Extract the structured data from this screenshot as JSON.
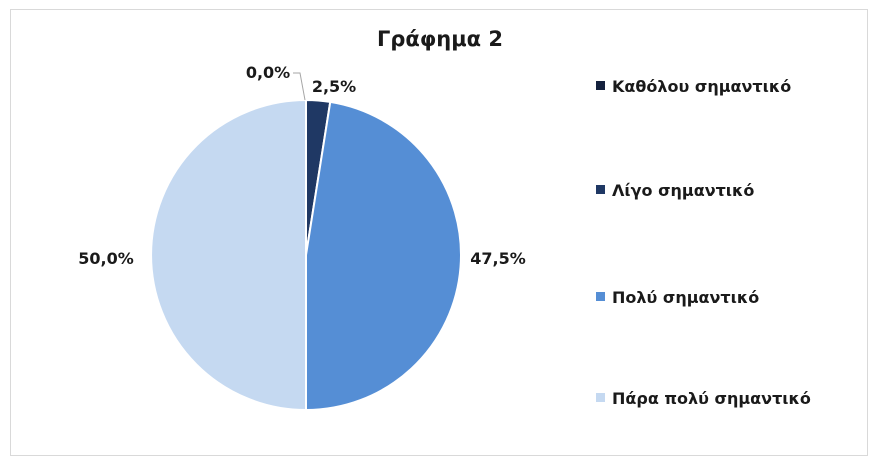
{
  "chart_data": {
    "type": "pie",
    "title": "Γράφημα 2",
    "categories": [
      "Καθόλου σημαντικό",
      "Λίγο σημαντικό",
      "Πολύ σημαντικό",
      "Πάρα πολύ σημαντικό"
    ],
    "values": [
      0.0,
      2.5,
      47.5,
      50.0
    ],
    "data_labels": [
      "0,0%",
      "2,5%",
      "47,5%",
      "50,0%"
    ],
    "colors": [
      "#14213d",
      "#1f3864",
      "#558ed5",
      "#c5d9f1"
    ],
    "legend_position": "right"
  }
}
